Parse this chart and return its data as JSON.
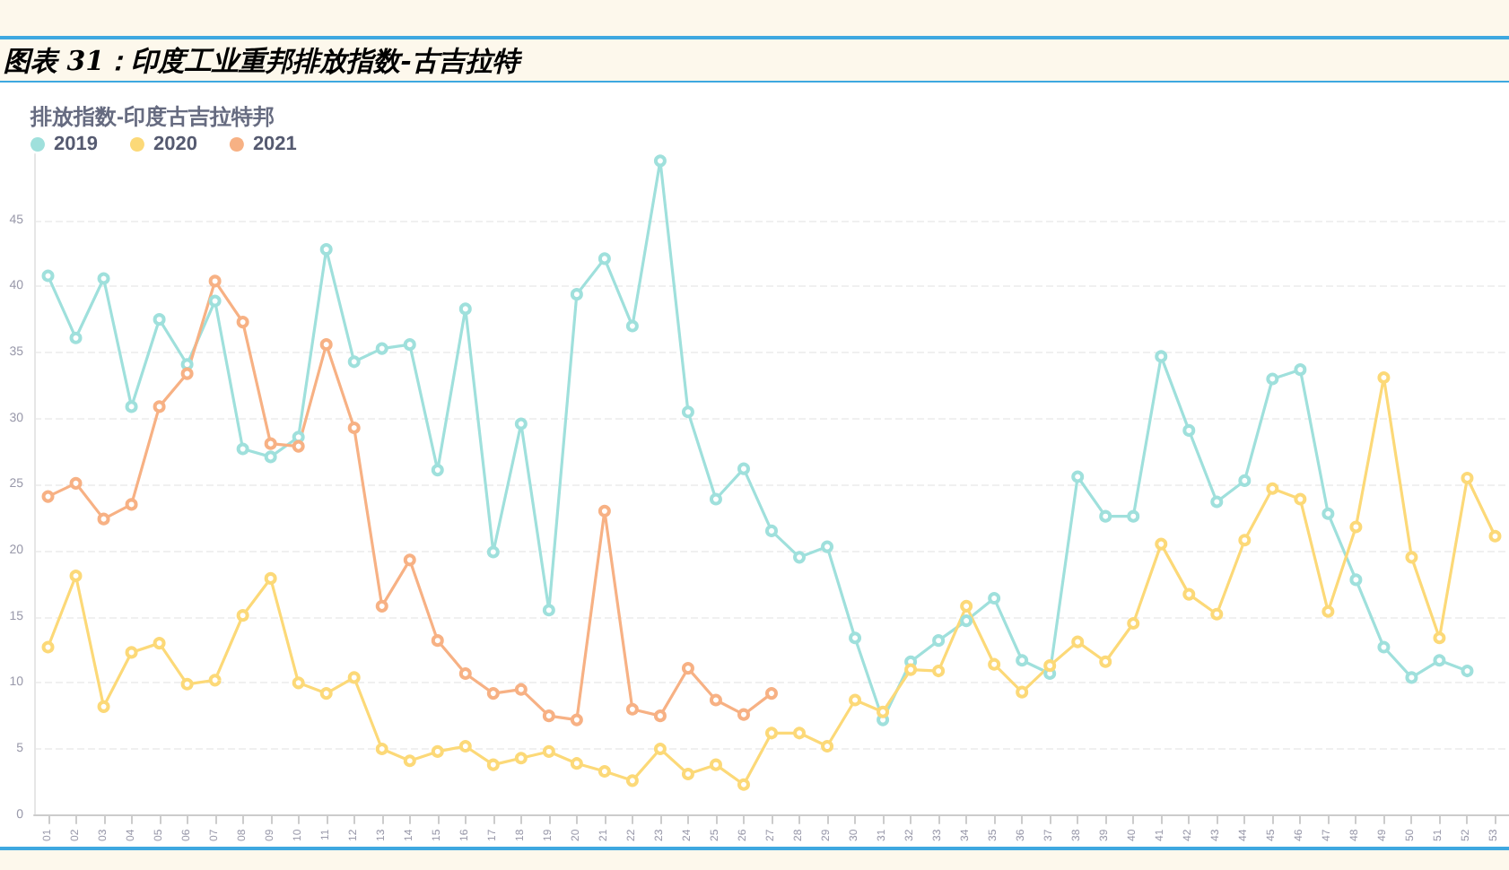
{
  "chart_data": {
    "type": "line",
    "title": "图表 31：印度工业重邦排放指数-古吉拉特",
    "subtitle": "排放指数-印度古吉拉特邦",
    "categories": [
      "01",
      "02",
      "03",
      "04",
      "05",
      "06",
      "07",
      "08",
      "09",
      "10",
      "11",
      "12",
      "13",
      "14",
      "15",
      "16",
      "17",
      "18",
      "19",
      "20",
      "21",
      "22",
      "23",
      "24",
      "25",
      "26",
      "27",
      "28",
      "29",
      "30",
      "31",
      "32",
      "33",
      "34",
      "35",
      "36",
      "37",
      "38",
      "39",
      "40",
      "41",
      "42",
      "43",
      "44",
      "45",
      "46",
      "47",
      "48",
      "49",
      "50",
      "51",
      "52",
      "53"
    ],
    "series": [
      {
        "name": "2019",
        "color": "#9fe0dc",
        "values": [
          40.8,
          36.1,
          40.6,
          30.9,
          37.5,
          34.1,
          38.9,
          27.7,
          27.1,
          28.6,
          42.8,
          34.3,
          35.3,
          35.6,
          26.1,
          38.3,
          19.9,
          29.6,
          15.5,
          39.4,
          42.1,
          37.0,
          49.5,
          30.5,
          23.9,
          26.2,
          21.5,
          19.5,
          20.3,
          13.4,
          7.2,
          11.6,
          13.2,
          14.7,
          16.4,
          11.7,
          10.7,
          25.6,
          22.6,
          22.6,
          34.7,
          29.1,
          23.7,
          25.3,
          33.0,
          33.7,
          22.8,
          17.8,
          12.7,
          10.4,
          11.7,
          10.9,
          null
        ]
      },
      {
        "name": "2020",
        "color": "#fcd978",
        "values": [
          12.7,
          18.1,
          8.2,
          12.3,
          13.0,
          9.9,
          10.2,
          15.1,
          17.9,
          10.0,
          9.2,
          10.4,
          5.0,
          4.1,
          4.8,
          5.2,
          3.8,
          4.3,
          4.8,
          3.9,
          3.3,
          2.6,
          5.0,
          3.1,
          3.8,
          2.3,
          6.2,
          6.2,
          5.2,
          8.7,
          7.8,
          11.0,
          10.9,
          15.8,
          11.4,
          9.3,
          11.3,
          13.1,
          11.6,
          14.5,
          20.5,
          16.7,
          15.2,
          20.8,
          24.7,
          23.9,
          15.4,
          21.8,
          33.1,
          19.5,
          13.4,
          25.5,
          21.1
        ]
      },
      {
        "name": "2021",
        "color": "#f7b184",
        "values": [
          24.1,
          25.1,
          22.4,
          23.5,
          30.9,
          33.4,
          40.4,
          37.3,
          28.1,
          27.9,
          35.6,
          29.3,
          15.8,
          19.3,
          13.2,
          10.7,
          9.2,
          9.5,
          7.5,
          7.2,
          23.0,
          8.0,
          7.5,
          11.1,
          8.7,
          7.6,
          9.2,
          null,
          null,
          null,
          null,
          null,
          null,
          null,
          null,
          null,
          null,
          null,
          null,
          null,
          null,
          null,
          null,
          null,
          null,
          null,
          null,
          null,
          null,
          null,
          null,
          null,
          null
        ]
      }
    ],
    "ylim": [
      0,
      50
    ],
    "yticks": [
      0,
      5,
      10,
      15,
      20,
      25,
      30,
      35,
      40,
      45
    ],
    "grid": "y",
    "legend": "top left",
    "marker": "circle",
    "line_style": "solid"
  }
}
